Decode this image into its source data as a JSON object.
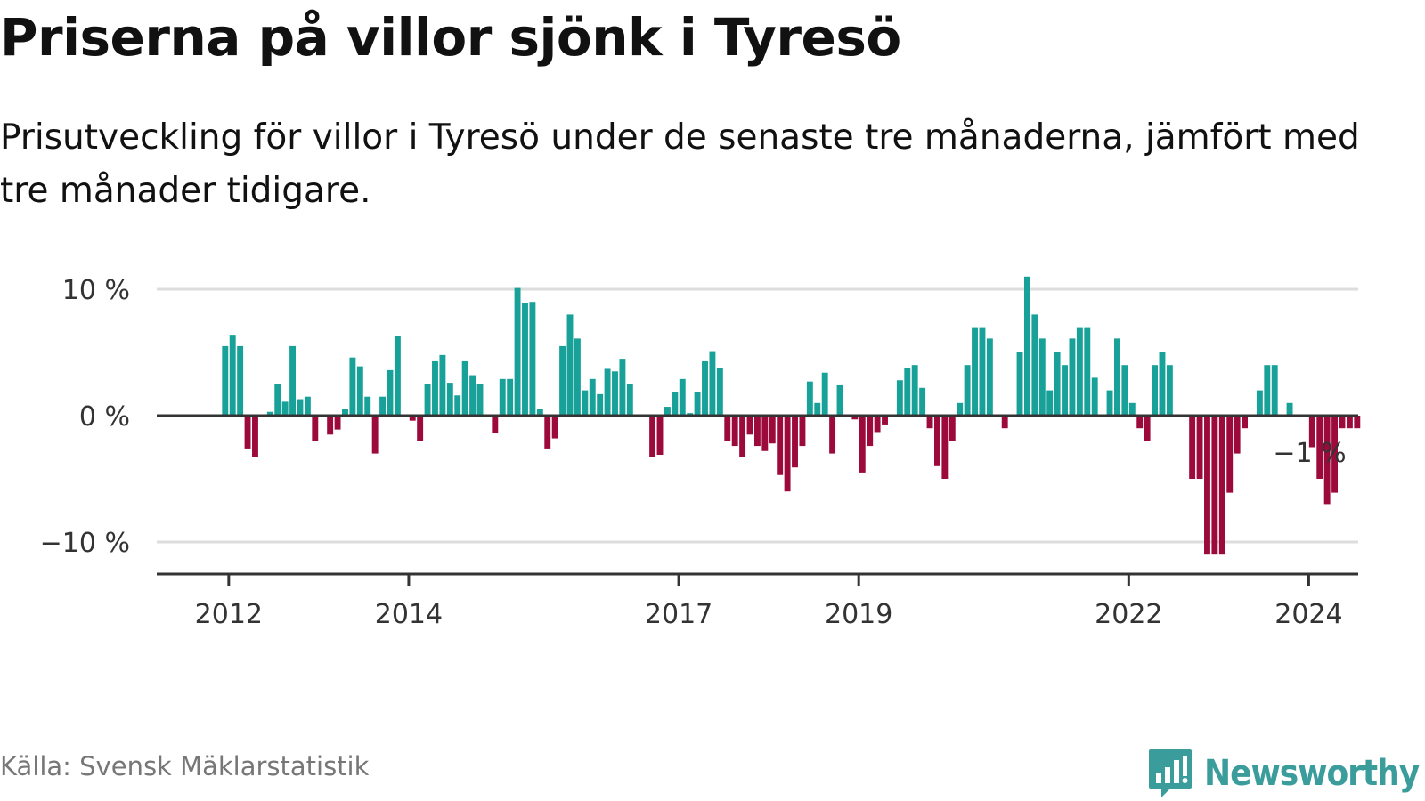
{
  "title": "Priserna på villor sjönk i Tyresö",
  "subtitle": "Prisutveckling för villor i Tyresö under de senaste tre månaderna, jämfört med tre månader tidigare.",
  "source": "Källa: Svensk Mäklarstatistik",
  "brand": "Newsworthy",
  "colors": {
    "positive": "#17a198",
    "negative": "#9c0a3c",
    "grid": "#dddddd",
    "axis": "#333333",
    "brand": "#3a9c9b"
  },
  "chart_data": {
    "type": "bar",
    "title": "Priserna på villor sjönk i Tyresö",
    "xlabel": "",
    "ylabel": "",
    "ylim": [
      -12.5,
      10.5
    ],
    "xlim": [
      2011.2,
      2024.55
    ],
    "y_ticks": [
      {
        "value": 10,
        "label": "10 %"
      },
      {
        "value": 0,
        "label": "0 %"
      },
      {
        "value": -10,
        "label": "−10 %"
      }
    ],
    "x_ticks": [
      {
        "value": 2012,
        "label": "2012"
      },
      {
        "value": 2014,
        "label": "2014"
      },
      {
        "value": 2017,
        "label": "2017"
      },
      {
        "value": 2019,
        "label": "2019"
      },
      {
        "value": 2022,
        "label": "2022"
      },
      {
        "value": 2024,
        "label": "2024"
      }
    ],
    "annotation": {
      "label": "−1 %",
      "x": 2024.0,
      "value": -1
    },
    "start": 2011.96,
    "step": 0.0833,
    "values": [
      5.5,
      6.4,
      5.5,
      -2.6,
      -3.3,
      null,
      0.3,
      2.5,
      1.1,
      5.5,
      1.3,
      1.5,
      -2.0,
      null,
      -1.5,
      -1.1,
      0.5,
      4.6,
      3.9,
      1.5,
      -3.0,
      1.5,
      3.6,
      6.3,
      null,
      -0.4,
      -2.0,
      2.5,
      4.3,
      4.8,
      2.6,
      1.6,
      4.3,
      3.2,
      2.5,
      null,
      -1.4,
      2.9,
      2.9,
      10.1,
      8.9,
      9.0,
      0.5,
      -2.6,
      -1.8,
      5.5,
      8.0,
      6.1,
      2.0,
      2.9,
      1.7,
      3.7,
      3.5,
      4.5,
      2.5,
      null,
      null,
      -3.3,
      -3.1,
      0.7,
      1.9,
      2.9,
      0.2,
      1.9,
      4.3,
      5.1,
      3.8,
      -2.0,
      -2.4,
      -3.3,
      -1.5,
      -2.4,
      -2.8,
      -2.2,
      -4.7,
      -6.0,
      -4.1,
      -2.4,
      2.7,
      1.0,
      3.4,
      -3.0,
      2.4,
      null,
      -0.3,
      -4.5,
      -2.4,
      -1.3,
      -0.7,
      null,
      2.8,
      3.8,
      4.0,
      2.2,
      -1.0,
      -4.0,
      -5.0,
      -2.0,
      1.0,
      4.0,
      7.0,
      7.0,
      6.1,
      null,
      -1.0,
      null,
      5.0,
      11.0,
      8.0,
      6.1,
      2.0,
      5.0,
      4.0,
      6.1,
      7.0,
      7.0,
      3.0,
      null,
      2.0,
      6.1,
      4.0,
      1.0,
      -1.0,
      -2.0,
      4.0,
      5.0,
      4.0,
      null,
      null,
      -5.0,
      -5.0,
      -11.0,
      -11.0,
      -11.0,
      -6.1,
      -3.0,
      -1.0,
      null,
      2.0,
      4.0,
      4.0,
      null,
      1.0,
      null,
      null,
      -2.5,
      -5.0,
      -7.0,
      -6.1,
      -1.0,
      -1.0,
      -1.0
    ]
  }
}
